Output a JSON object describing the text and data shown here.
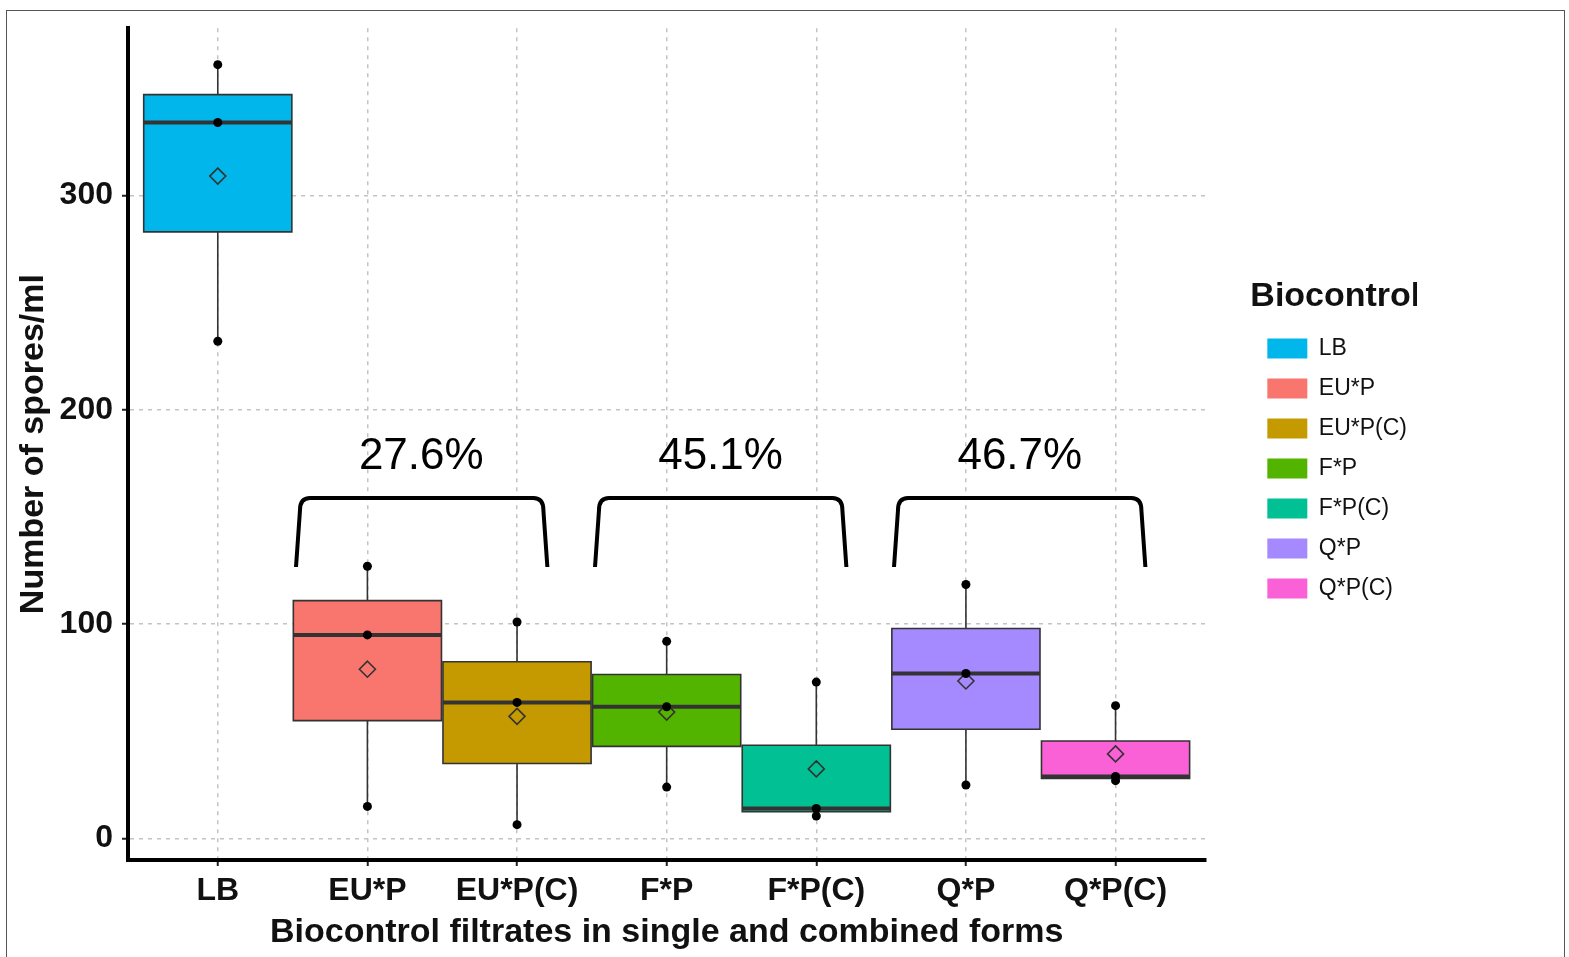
{
  "chart_data": {
    "type": "box",
    "xlabel": "Biocontrol filtrates in single and combined forms",
    "ylabel": "Number of spores/ml",
    "legend_title": "Biocontrol",
    "legend": "right",
    "grid": true,
    "categories": [
      "LB",
      "EU*P",
      "EU*P(C)",
      "F*P",
      "F*P(C)",
      "Q*P",
      "Q*P(C)"
    ],
    "ylim": [
      -10,
      378
    ],
    "yticks": [
      0,
      100,
      200,
      300
    ],
    "series": [
      {
        "name": "LB",
        "color": "#00b6eb",
        "boxes": [
          {
            "low": 232,
            "q1": 283,
            "median": 334,
            "q3": 347,
            "high": 361,
            "mean": 309
          },
          null,
          null,
          null,
          null,
          null,
          null
        ]
      },
      {
        "name": "EU*P",
        "color": "#f8766d",
        "boxes": [
          null,
          {
            "low": 15,
            "q1": 55,
            "median": 95,
            "q3": 111,
            "high": 127,
            "mean": 79
          },
          null,
          null,
          null,
          null,
          null
        ]
      },
      {
        "name": "EU*P(C)",
        "color": "#c49a00",
        "boxes": [
          null,
          null,
          {
            "low": 6.5,
            "q1": 35,
            "median": 63.5,
            "q3": 82.5,
            "high": 101,
            "mean": 57
          },
          null,
          null,
          null,
          null
        ]
      },
      {
        "name": "F*P",
        "color": "#53b400",
        "boxes": [
          null,
          null,
          null,
          {
            "low": 24,
            "q1": 43,
            "median": 61.5,
            "q3": 76.5,
            "high": 92,
            "mean": 59
          },
          null,
          null,
          null
        ]
      },
      {
        "name": "F*P(C)",
        "color": "#00c094",
        "boxes": [
          null,
          null,
          null,
          null,
          {
            "low": 10.5,
            "q1": 12.5,
            "median": 14,
            "q3": 43.5,
            "high": 73,
            "mean": 32.5
          },
          null,
          null
        ]
      },
      {
        "name": "Q*P",
        "color": "#a58aff",
        "boxes": [
          null,
          null,
          null,
          null,
          null,
          {
            "low": 25,
            "q1": 51,
            "median": 77,
            "q3": 98,
            "high": 118.5,
            "mean": 73.5
          },
          null
        ]
      },
      {
        "name": "Q*P(C)",
        "color": "#fb61d7",
        "boxes": [
          null,
          null,
          null,
          null,
          null,
          null,
          {
            "low": 27,
            "q1": 28,
            "median": 29,
            "q3": 45.5,
            "high": 62,
            "mean": 39.5
          }
        ]
      },
      {
        "type": "scatter",
        "color": "#000000",
        "marker": "circle",
        "x": [
          "LB",
          "LB",
          "LB",
          "EU*P",
          "EU*P",
          "EU*P",
          "EU*P(C)",
          "EU*P(C)",
          "EU*P(C)",
          "F*P",
          "F*P",
          "F*P",
          "F*P(C)",
          "F*P(C)",
          "F*P(C)",
          "Q*P",
          "Q*P",
          "Q*P",
          "Q*P(C)",
          "Q*P(C)",
          "Q*P(C)"
        ],
        "values": [
          361,
          334,
          232,
          127,
          95,
          15,
          101,
          63.5,
          6.5,
          92,
          61.5,
          24,
          73,
          14,
          10.5,
          118.5,
          77,
          25,
          62,
          29,
          27
        ]
      }
    ],
    "annotations": [
      "27.6%",
      "45.1%",
      "46.7%"
    ]
  }
}
